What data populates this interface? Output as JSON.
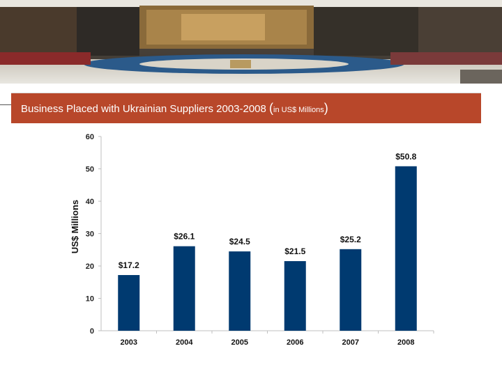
{
  "header": {
    "title_main": "Business Placed with Ukrainian Suppliers 2003-2008 ",
    "title_open_paren": "(",
    "title_unit": "in US$ Millions",
    "title_close_paren": ")"
  },
  "colors": {
    "title_bar": "#b8472a",
    "bar": "#003a70"
  },
  "chart_data": {
    "type": "bar",
    "categories": [
      "2003",
      "2004",
      "2005",
      "2006",
      "2007",
      "2008"
    ],
    "values": [
      17.2,
      26.1,
      24.5,
      21.5,
      25.2,
      50.8
    ],
    "data_labels": [
      "$17.2",
      "$26.1",
      "$24.5",
      "$21.5",
      "$25.2",
      "$50.8"
    ],
    "ylabel": "US$ Millions",
    "xlabel": "",
    "ylim": [
      0,
      60
    ],
    "yticks": [
      "0",
      "10",
      "20",
      "30",
      "40",
      "50",
      "60"
    ],
    "grid": false,
    "legend": "none"
  }
}
